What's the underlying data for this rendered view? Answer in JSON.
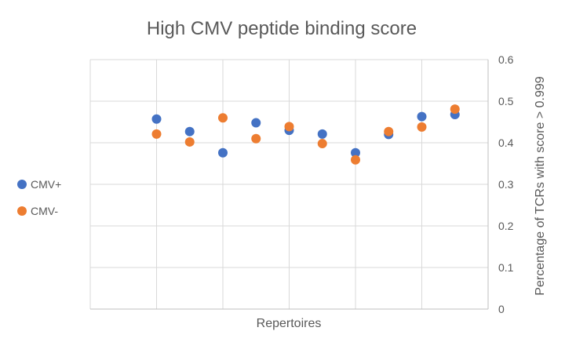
{
  "chart_data": {
    "type": "scatter",
    "title": "High CMV peptide binding score",
    "xlabel": "Repertoires",
    "ylabel": "Percentage of TCRs with score > 0.999",
    "ylim": [
      0,
      0.6
    ],
    "xlim": [
      0,
      12
    ],
    "y_ticks": [
      "0",
      "0.1",
      "0.2",
      "0.3",
      "0.4",
      "0.5",
      "0.6"
    ],
    "y_tick_values": [
      0,
      0.1,
      0.2,
      0.3,
      0.4,
      0.5,
      0.6
    ],
    "x_gridlines": [
      2,
      4,
      6,
      8,
      10
    ],
    "y_axis_side": "right",
    "legend_position": "left",
    "grid": true,
    "series": [
      {
        "name": "CMV+",
        "color": "#4472C4",
        "x": [
          2,
          3,
          4,
          5,
          6,
          7,
          8,
          9,
          10,
          11
        ],
        "y": [
          0.457,
          0.427,
          0.376,
          0.448,
          0.43,
          0.421,
          0.376,
          0.42,
          0.463,
          0.468
        ]
      },
      {
        "name": "CMV-",
        "color": "#ED7D31",
        "x": [
          2,
          3,
          4,
          5,
          6,
          7,
          8,
          9,
          10,
          11
        ],
        "y": [
          0.421,
          0.402,
          0.46,
          0.41,
          0.439,
          0.398,
          0.359,
          0.427,
          0.438,
          0.481
        ]
      }
    ]
  }
}
